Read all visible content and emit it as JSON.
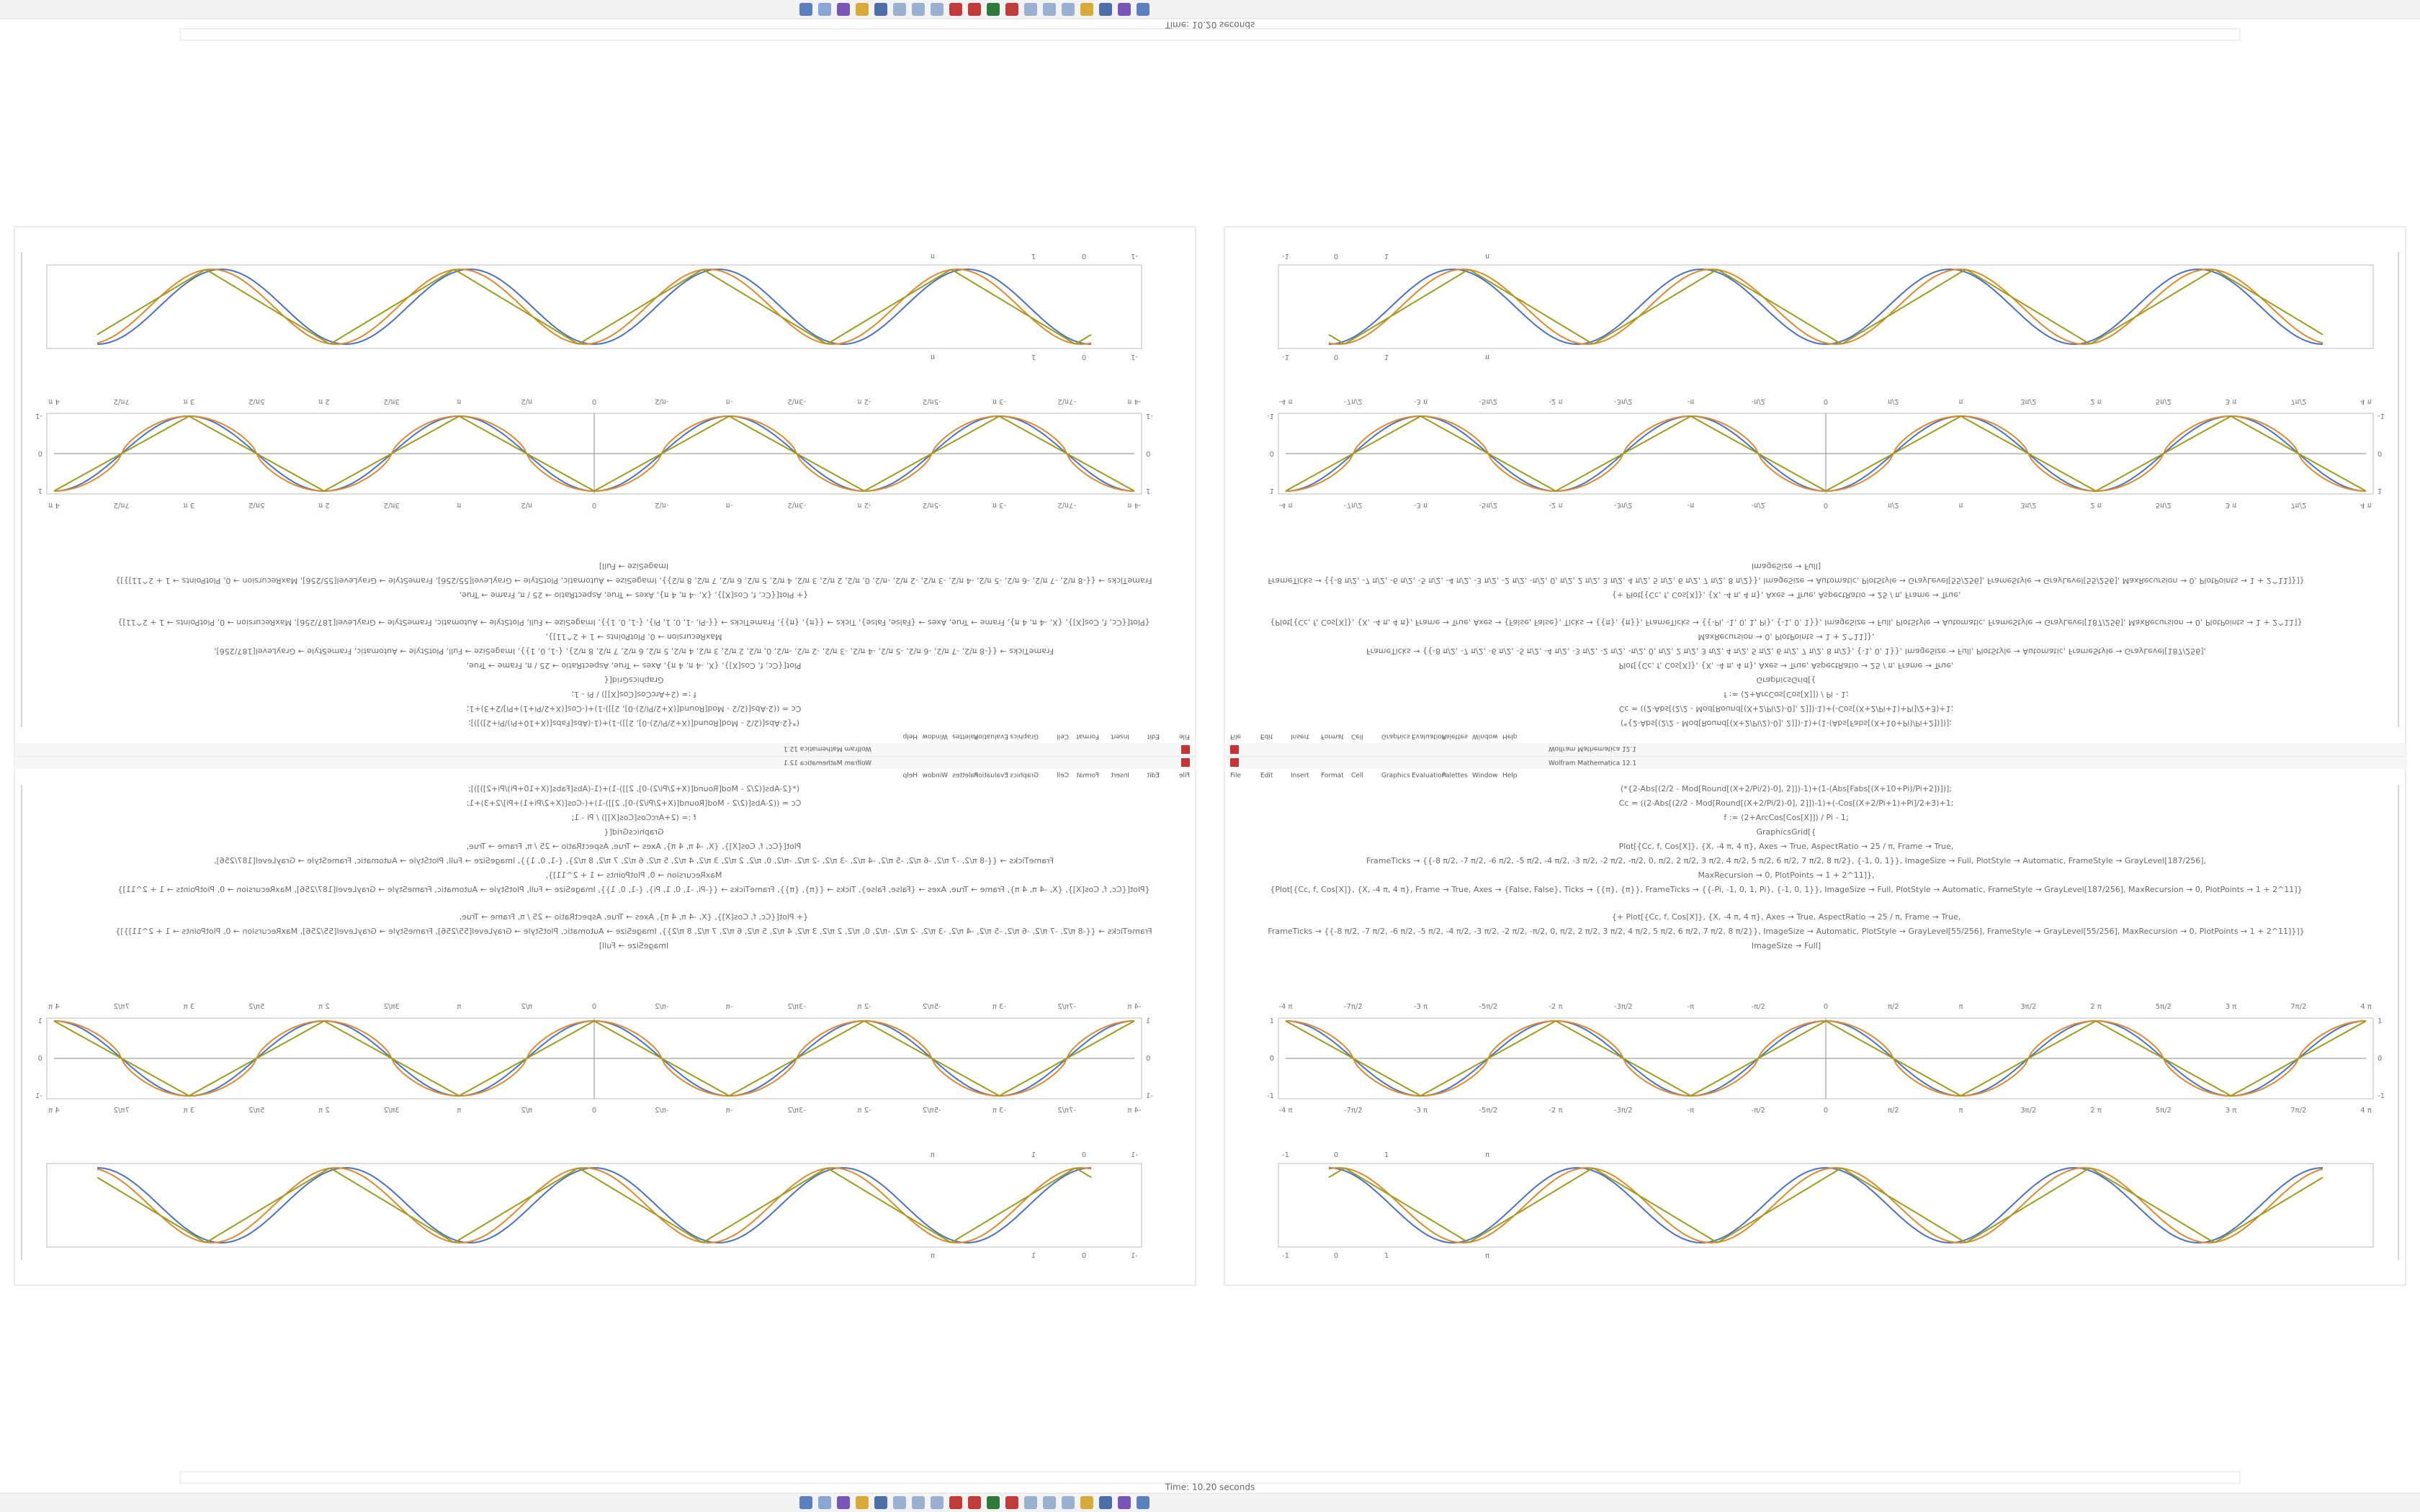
{
  "window": {
    "title": "Wolfram Mathematica 12.1",
    "menu": [
      "File",
      "Edit",
      "Insert",
      "Format",
      "Cell",
      "Graphics",
      "Evaluation",
      "Palettes",
      "Window",
      "Help"
    ]
  },
  "status": "Time: 10.20 seconds",
  "notebook": {
    "code": [
      "(*{2-Abs[(2/2 - Mod[Round[(X+2/Pi/2)-0], 2]])-1)+(1-(Abs[Fabs[(X+10+Pi)/Pi+2])])];",
      "Cc = ((2-Abs[(2/2 - Mod[Round[(X+2/Pi/2)-0], 2]])-1)+(-Cos[(X+2/Pi+1)+Pi]/2+3)+1;",
      "f := (2+ArcCos[Cos[X]]) / Pi - 1;",
      "GraphicsGrid[{",
      "Plot[{Cc, f, Cos[X]}, {X, -4 π, 4 π}, Axes → True, AspectRatio → 25 / π, Frame → True,",
      "FrameTicks → {{-8 π/2, -7 π/2, -6 π/2, -5 π/2, -4 π/2, -3 π/2, -2 π/2, -π/2, 0, π/2, 2 π/2, 3 π/2, 4 π/2, 5 π/2, 6 π/2, 7 π/2, 8 π/2}, {-1, 0, 1}}, ImageSize → Full, PlotStyle → Automatic, FrameStyle → GrayLevel[187/256],",
      "MaxRecursion → 0, PlotPoints → 1 + 2^11]},",
      "{Plot[{Cc, f, Cos[X]}, {X, -4 π, 4 π}, Frame → True, Axes → {False, False}, Ticks → {{π}, {π}}, FrameTicks → {{-Pi, -1, 0, 1, Pi}, {-1, 0, 1}}, ImageSize → Full, PlotStyle → Automatic, FrameStyle → GrayLevel[187/256], MaxRecursion → 0, PlotPoints → 1 + 2^11]}",
      "{+ Plot[{Cc, f, Cos[X]}, {X, -4 π, 4 π}, Axes → True, AspectRatio → 25 / π, Frame → True,",
      "FrameTicks → {{-8 π/2, -7 π/2, -6 π/2, -5 π/2, -4 π/2, -3 π/2, -2 π/2, -π/2, 0, π/2, 2 π/2, 3 π/2, 4 π/2, 5 π/2, 6 π/2, 7 π/2, 8 π/2}}, ImageSize → Automatic, PlotStyle → GrayLevel[55/256], FrameStyle → GrayLevel[55/256], MaxRecursion → 0, PlotPoints → 1 + 2^11]}]}",
      "ImageSize → Full]"
    ],
    "axis_ticks": [
      "-4 π",
      "-7π/2",
      "-3 π",
      "-5π/2",
      "-2 π",
      "-3π/2",
      "-π",
      "-π/2",
      "0",
      "π/2",
      "π",
      "3π/2",
      "2 π",
      "5π/2",
      "3 π",
      "7π/2",
      "4 π"
    ],
    "frame_ticks": [
      "-1",
      "0",
      "1",
      "π"
    ],
    "y_ticks": [
      "-1",
      "0",
      "1"
    ]
  }
}
